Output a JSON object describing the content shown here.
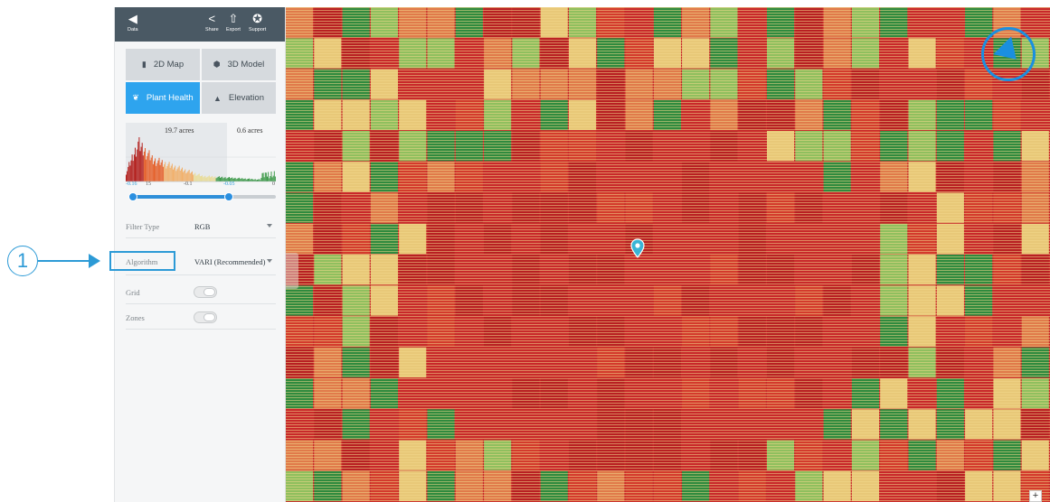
{
  "callout": {
    "number": "1"
  },
  "toolbar": {
    "back_label": "Data",
    "share_label": "Share",
    "export_label": "Export",
    "support_label": "Support",
    "icons": {
      "back": "back-arrow-icon",
      "share": "share-icon",
      "export": "export-icon",
      "support": "support-icon"
    }
  },
  "view_modes": [
    {
      "label": "2D Map",
      "icon": "map-icon",
      "active": false
    },
    {
      "label": "3D Model",
      "icon": "cube-icon",
      "active": false
    },
    {
      "label": "Plant Health",
      "icon": "leaf-icon",
      "active": true
    },
    {
      "label": "Elevation",
      "icon": "mountain-icon",
      "active": false
    }
  ],
  "histogram": {
    "left_area": "19.7 acres",
    "right_area": "0.6 acres",
    "ticks": [
      "-0.16",
      "15",
      "-0.1",
      "-0.05",
      "0"
    ],
    "range_low": -0.16,
    "range_high": -0.05
  },
  "settings": {
    "filter_type": {
      "label": "Filter Type",
      "value": "RGB"
    },
    "algorithm": {
      "label": "Algorithm",
      "value": "VARI (Recommended)"
    },
    "grid": {
      "label": "Grid",
      "enabled": false
    },
    "zones": {
      "label": "Zones",
      "enabled": false
    }
  },
  "map": {
    "zoom_in_label": "+",
    "colors": {
      "low": "#c8282a",
      "mid": "#e8c878",
      "high": "#2f8a3e",
      "accent": "#1a8fe0"
    }
  }
}
